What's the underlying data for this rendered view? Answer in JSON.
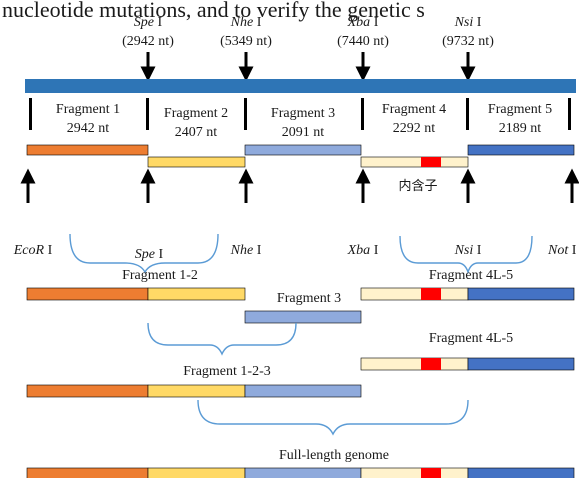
{
  "header_text": "nucleotide mutations, and to verify the genetic s",
  "colors": {
    "genome_bar": "#2e75b6",
    "fragment1": "#ed7d31",
    "fragment2": "#ffd966",
    "fragment3": "#8faadc",
    "fragment4": "#fff2cc",
    "fragment5": "#4472c4",
    "intron": "#ff0000",
    "arrow": "#000000",
    "brace": "#5b9bd5"
  },
  "top_sites": [
    {
      "name": "Spe",
      "suffix": " I",
      "position": "(2942 nt)"
    },
    {
      "name": "Nhe",
      "suffix": " I",
      "position": "(5349 nt)"
    },
    {
      "name": "Xba",
      "suffix": " I",
      "position": "(7440 nt)"
    },
    {
      "name": "Nsi",
      "suffix": " I",
      "position": "(9732 nt)"
    }
  ],
  "fragments": [
    {
      "name": "Fragment 1",
      "length": "2942 nt"
    },
    {
      "name": "Fragment 2",
      "length": "2407 nt"
    },
    {
      "name": "Fragment 3",
      "length": "2091 nt"
    },
    {
      "name": "Fragment 4",
      "length": "2292 nt"
    },
    {
      "name": "Fragment 5",
      "length": "2189 nt"
    }
  ],
  "intron_label": "内含子",
  "bottom_sites": [
    {
      "name": "EcoR",
      "suffix": " I"
    },
    {
      "name": "Spe",
      "suffix": " I"
    },
    {
      "name": "Nhe",
      "suffix": " I"
    },
    {
      "name": "Xba",
      "suffix": " I"
    },
    {
      "name": "Nsi",
      "suffix": " I"
    },
    {
      "name": "Not",
      "suffix": " I"
    }
  ],
  "assembly": {
    "frag_1_2": "Fragment 1-2",
    "frag_3": "Fragment 3",
    "frag_4l_5_a": "Fragment 4L-5",
    "frag_4l_5_b": "Fragment 4L-5",
    "frag_1_2_3": "Fragment 1-2-3",
    "full_length": "Full-length genome"
  }
}
